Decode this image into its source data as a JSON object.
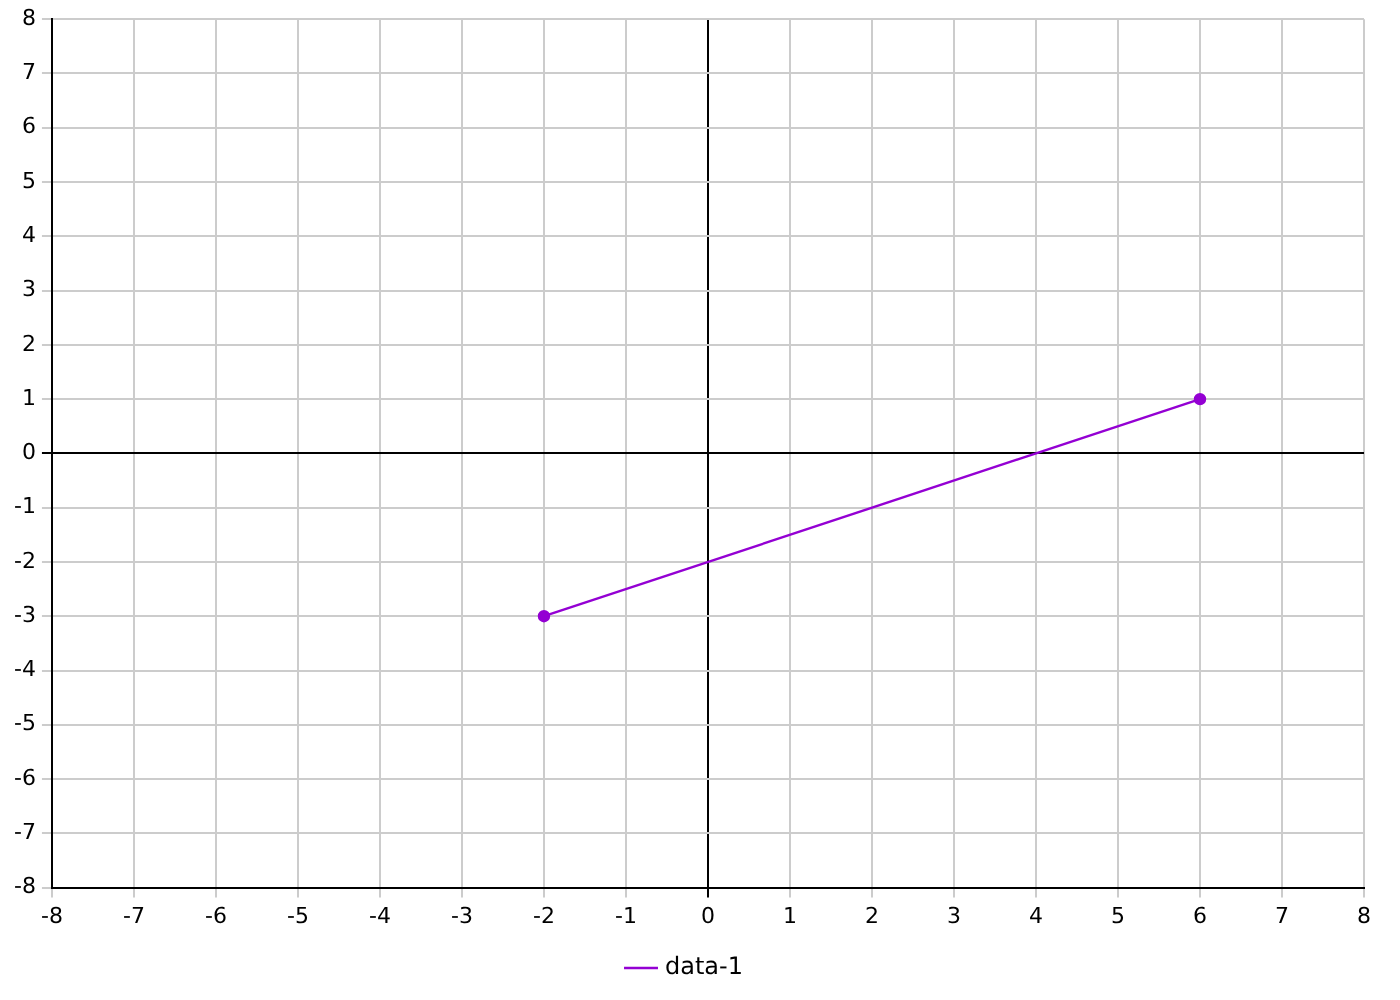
{
  "chart_data": {
    "type": "line",
    "series": [
      {
        "name": "data-1",
        "color": "#9400d3",
        "x": [
          -2,
          6
        ],
        "values": [
          -3,
          1
        ]
      }
    ],
    "xlim": [
      -8,
      8
    ],
    "xticks": [
      -8,
      -7,
      -6,
      -5,
      -4,
      -3,
      -2,
      -1,
      0,
      1,
      2,
      3,
      4,
      5,
      6,
      7,
      8
    ],
    "ylim": [
      -8,
      8
    ],
    "yticks": [
      -8,
      -7,
      -6,
      -5,
      -4,
      -3,
      -2,
      -1,
      0,
      1,
      2,
      3,
      4,
      5,
      6,
      7,
      8
    ],
    "grid": true,
    "legend": "bottom",
    "marker": "circle",
    "line_style": "solid"
  }
}
